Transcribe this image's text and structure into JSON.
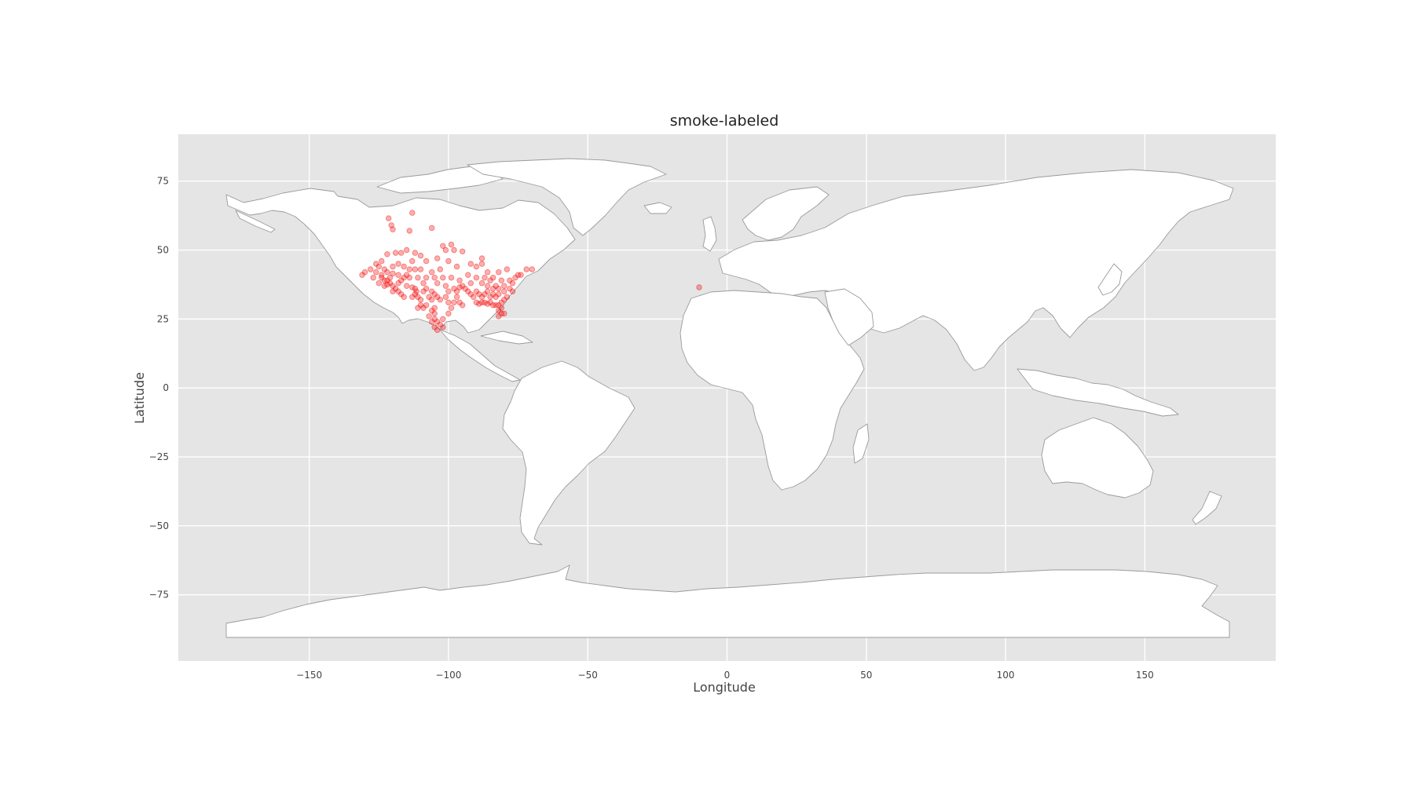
{
  "chart_data": {
    "type": "scatter",
    "title": "smoke-labeled",
    "xlabel": "Longitude",
    "ylabel": "Latitude",
    "xlim": [
      -197,
      197
    ],
    "ylim": [
      -99,
      92
    ],
    "xticks": [
      -150,
      -100,
      -50,
      0,
      50,
      100,
      150
    ],
    "yticks": [
      75,
      50,
      25,
      0,
      -25,
      -50,
      -75
    ],
    "grid": true,
    "colors": {
      "background": "#e5e5e5",
      "land": "#ffffff",
      "border": "#9a9a9a",
      "points": "#ff0000"
    },
    "series": [
      {
        "points": [
          [
            -120.5,
            59
          ],
          [
            -120,
            57.5
          ],
          [
            -121.5,
            61.5
          ],
          [
            -113,
            63.5
          ],
          [
            -114,
            57
          ],
          [
            -106,
            58
          ],
          [
            -102,
            51.5
          ],
          [
            -99,
            52
          ],
          [
            -98,
            50
          ],
          [
            -101,
            50
          ],
          [
            -95,
            49.5
          ],
          [
            -88,
            47
          ],
          [
            -92,
            45
          ],
          [
            -88,
            45
          ],
          [
            -97,
            44
          ],
          [
            -90,
            44
          ],
          [
            -93,
            41
          ],
          [
            -79,
            43
          ],
          [
            -82,
            42
          ],
          [
            -86,
            42
          ],
          [
            -117,
            49
          ],
          [
            -119,
            49
          ],
          [
            -122,
            48.5
          ],
          [
            -115,
            50
          ],
          [
            -112,
            49
          ],
          [
            -110,
            48
          ],
          [
            -108,
            46
          ],
          [
            -113,
            46
          ],
          [
            -104,
            47
          ],
          [
            -100,
            46
          ],
          [
            -124,
            46
          ],
          [
            -125,
            44
          ],
          [
            -123,
            43
          ],
          [
            -120,
            44
          ],
          [
            -118,
            45
          ],
          [
            -116,
            44
          ],
          [
            -112,
            43
          ],
          [
            -110,
            43
          ],
          [
            -106,
            42
          ],
          [
            -103,
            43
          ],
          [
            -126,
            42
          ],
          [
            -124,
            41
          ],
          [
            -122,
            42
          ],
          [
            -120,
            41.5
          ],
          [
            -118,
            41
          ],
          [
            -116,
            40
          ],
          [
            -114,
            40
          ],
          [
            -111,
            40
          ],
          [
            -108,
            40
          ],
          [
            -105,
            40
          ],
          [
            -102,
            40
          ],
          [
            -99,
            40
          ],
          [
            -124,
            40
          ],
          [
            -123,
            39
          ],
          [
            -121,
            38
          ],
          [
            -122,
            37.5
          ],
          [
            -120,
            37
          ],
          [
            -119,
            36
          ],
          [
            -118,
            35
          ],
          [
            -117,
            34
          ],
          [
            -116,
            33
          ],
          [
            -120,
            35
          ],
          [
            -118,
            38
          ],
          [
            -115,
            37
          ],
          [
            -113,
            36.5
          ],
          [
            -112,
            36
          ],
          [
            -111.5,
            35
          ],
          [
            -112,
            34
          ],
          [
            -111,
            33
          ],
          [
            -110,
            32
          ],
          [
            -113,
            33
          ],
          [
            -109,
            35
          ],
          [
            -108,
            36
          ],
          [
            -106,
            35
          ],
          [
            -105,
            34
          ],
          [
            -104,
            33
          ],
          [
            -107,
            33
          ],
          [
            -106,
            32
          ],
          [
            -103,
            32
          ],
          [
            -101,
            33
          ],
          [
            -100,
            35
          ],
          [
            -98,
            36
          ],
          [
            -97,
            35
          ],
          [
            -96,
            36.5
          ],
          [
            -95,
            37
          ],
          [
            -94,
            36
          ],
          [
            -93,
            35
          ],
          [
            -97,
            33
          ],
          [
            -98,
            31
          ],
          [
            -96,
            31
          ],
          [
            -95,
            30
          ],
          [
            -100,
            31
          ],
          [
            -99,
            29
          ],
          [
            -92,
            34
          ],
          [
            -91,
            33
          ],
          [
            -90,
            35
          ],
          [
            -89,
            34
          ],
          [
            -88,
            33
          ],
          [
            -87,
            34
          ],
          [
            -86,
            35
          ],
          [
            -85,
            33
          ],
          [
            -84,
            34
          ],
          [
            -83,
            33
          ],
          [
            -82,
            34
          ],
          [
            -90,
            31
          ],
          [
            -89,
            30.5
          ],
          [
            -88,
            31
          ],
          [
            -87,
            31
          ],
          [
            -86,
            30.5
          ],
          [
            -85,
            31
          ],
          [
            -84,
            30
          ],
          [
            -83,
            30
          ],
          [
            -82,
            30
          ],
          [
            -81,
            31
          ],
          [
            -80,
            32
          ],
          [
            -79,
            33
          ],
          [
            -82,
            28
          ],
          [
            -81,
            27
          ],
          [
            -82,
            26
          ],
          [
            -80,
            27
          ],
          [
            -81,
            29
          ],
          [
            -84,
            36
          ],
          [
            -83,
            37
          ],
          [
            -86,
            37
          ],
          [
            -88,
            38
          ],
          [
            -85,
            39
          ],
          [
            -82,
            36
          ],
          [
            -80,
            35
          ],
          [
            -78,
            36
          ],
          [
            -78,
            39
          ],
          [
            -77,
            38
          ],
          [
            -76,
            40
          ],
          [
            -77,
            35
          ],
          [
            -80,
            37
          ],
          [
            -75,
            41
          ],
          [
            -81,
            39
          ],
          [
            -74,
            41
          ],
          [
            -72,
            43
          ],
          [
            -70,
            43
          ],
          [
            -105,
            29
          ],
          [
            -106,
            28
          ],
          [
            -105,
            27
          ],
          [
            -107,
            26
          ],
          [
            -105,
            25
          ],
          [
            -104,
            24
          ],
          [
            -106,
            24
          ],
          [
            -103,
            23
          ],
          [
            -105,
            22
          ],
          [
            -104,
            21
          ],
          [
            -102,
            22
          ],
          [
            -102,
            25
          ],
          [
            -110,
            30
          ],
          [
            -111,
            29
          ],
          [
            -109,
            29
          ],
          [
            -108,
            30
          ],
          [
            -100,
            27
          ],
          [
            -122,
            39
          ],
          [
            -123,
            37
          ],
          [
            -121,
            40
          ],
          [
            -117,
            39
          ],
          [
            -115,
            41
          ],
          [
            -114,
            43
          ],
          [
            -109,
            38
          ],
          [
            -104,
            38
          ],
          [
            -101,
            37
          ],
          [
            -96,
            39
          ],
          [
            -92,
            38
          ],
          [
            -90,
            40
          ],
          [
            -87,
            40
          ],
          [
            -84,
            40
          ],
          [
            -126,
            45
          ],
          [
            -128,
            43
          ],
          [
            -131,
            41
          ],
          [
            -130,
            42
          ],
          [
            -127,
            40
          ],
          [
            -125,
            38
          ],
          [
            -10,
            36.5
          ]
        ]
      }
    ]
  }
}
